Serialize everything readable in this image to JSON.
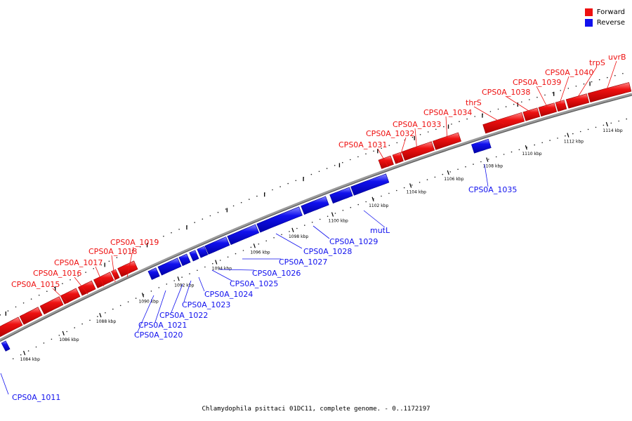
{
  "legend": {
    "forward_label": "Forward",
    "reverse_label": "Reverse",
    "forward_color": "#ee1111",
    "reverse_color": "#1111ee"
  },
  "footer": "Chlamydophila psittaci 01DC11, complete genome. - 0..1172197",
  "scale_labels": [
    "1084 kbp",
    "1086 kbp",
    "1088 kbp",
    "1090 kbp",
    "1092 kbp",
    "1094 kbp",
    "1096 kbp",
    "1098 kbp",
    "1100 kbp",
    "1102 kbp",
    "1104 kbp",
    "1106 kbp",
    "1108 kbp",
    "1110 kbp",
    "1112 kbp",
    "1114 kbp"
  ],
  "genes_forward": [
    "CPS0A_1015",
    "CPS0A_1016",
    "CPS0A_1017",
    "CPS0A_1018",
    "CPS0A_1019",
    "CPS0A_1031",
    "CPS0A_1032",
    "CPS0A_1033",
    "CPS0A_1034",
    "thrS",
    "CPS0A_1038",
    "CPS0A_1039",
    "CPS0A_1040",
    "trpS",
    "uvrB"
  ],
  "genes_reverse": [
    "CPS0A_1011",
    "CPS0A_1020",
    "CPS0A_1021",
    "CPS0A_1022",
    "CPS0A_1023",
    "CPS0A_1024",
    "CPS0A_1025",
    "CPS0A_1026",
    "CPS0A_1027",
    "CPS0A_1028",
    "CPS0A_1029",
    "mutL",
    "CPS0A_1035"
  ]
}
